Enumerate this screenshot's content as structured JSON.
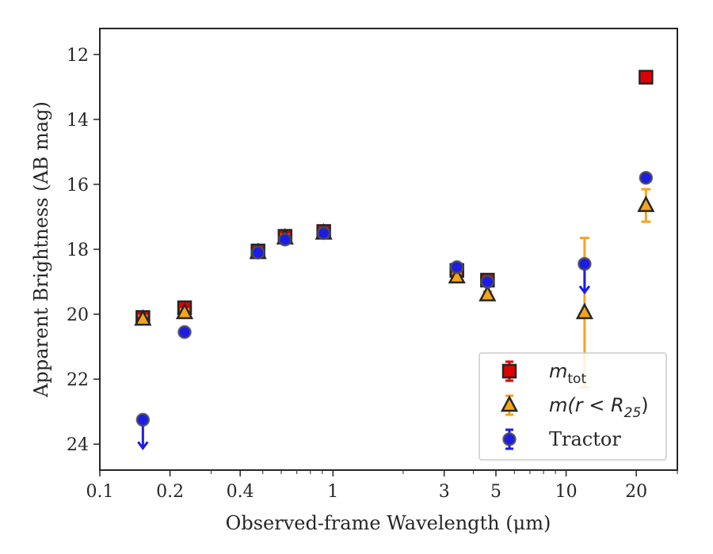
{
  "chart_data": {
    "type": "scatter",
    "xlabel": "Observed-frame Wavelength (μm)",
    "ylabel": "Apparent Brightness (AB mag)",
    "xscale": "log",
    "xlim": [
      0.1,
      30
    ],
    "ylim": [
      24.8,
      11.2
    ],
    "y_inverted": true,
    "x_ticks": [
      0.1,
      0.2,
      0.4,
      1,
      3,
      5,
      10,
      20
    ],
    "x_tick_labels": [
      "0.1",
      "0.2",
      "0.4",
      "1",
      "3",
      "5",
      "10",
      "20"
    ],
    "y_ticks": [
      12,
      14,
      16,
      18,
      20,
      22,
      24
    ],
    "y_tick_labels": [
      "12",
      "14",
      "16",
      "18",
      "20",
      "22",
      "24"
    ],
    "legend_position": "lower right",
    "grid": false,
    "series": [
      {
        "name": "m_tot",
        "legend_label": "m",
        "legend_subscript": "tot",
        "marker": "square",
        "color": "#e00000",
        "edge_color": "#262626",
        "points": [
          {
            "x": 0.153,
            "y": 20.1,
            "err": 0.1
          },
          {
            "x": 0.231,
            "y": 19.8,
            "err": 0.1
          },
          {
            "x": 0.477,
            "y": 18.05,
            "err": 0.1
          },
          {
            "x": 0.623,
            "y": 17.6,
            "err": 0.1
          },
          {
            "x": 0.913,
            "y": 17.45,
            "err": 0.1
          },
          {
            "x": 3.4,
            "y": 18.65,
            "err": 0.1
          },
          {
            "x": 4.6,
            "y": 18.95,
            "err": 0.1
          },
          {
            "x": 22.0,
            "y": 12.7,
            "err": 0.05
          }
        ]
      },
      {
        "name": "m(r < R25)",
        "legend_label": "m(r < R",
        "legend_subscript": "25",
        "legend_suffix": ")",
        "marker": "triangle",
        "color": "#f5a41b",
        "edge_color": "#262626",
        "points": [
          {
            "x": 0.153,
            "y": 20.15,
            "err": 0.1
          },
          {
            "x": 0.231,
            "y": 19.95,
            "err": 0.1
          },
          {
            "x": 0.477,
            "y": 18.1,
            "err": 0.1
          },
          {
            "x": 0.623,
            "y": 17.65,
            "err": 0.1
          },
          {
            "x": 0.913,
            "y": 17.5,
            "err": 0.1
          },
          {
            "x": 3.4,
            "y": 18.85,
            "err": 0.1
          },
          {
            "x": 4.6,
            "y": 19.4,
            "err": 0.1
          },
          {
            "x": 12.0,
            "y": 19.95,
            "err": 2.3
          },
          {
            "x": 22.0,
            "y": 16.65,
            "err": 0.5
          }
        ]
      },
      {
        "name": "Tractor",
        "legend_label": "Tractor",
        "marker": "circle",
        "color": "#1c1ce6",
        "edge_color": "#4d4d4d",
        "points": [
          {
            "x": 0.153,
            "y": 23.25,
            "upper_limit": true
          },
          {
            "x": 0.231,
            "y": 20.55
          },
          {
            "x": 0.477,
            "y": 18.1
          },
          {
            "x": 0.623,
            "y": 17.7
          },
          {
            "x": 0.913,
            "y": 17.5
          },
          {
            "x": 3.4,
            "y": 18.55
          },
          {
            "x": 4.6,
            "y": 19.0
          },
          {
            "x": 12.0,
            "y": 18.45,
            "upper_limit": true
          },
          {
            "x": 22.0,
            "y": 15.8
          }
        ]
      }
    ]
  }
}
